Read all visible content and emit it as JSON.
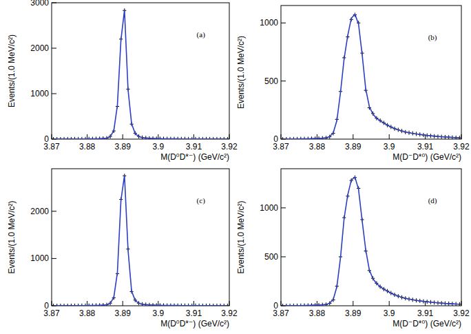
{
  "chart_data": [
    {
      "type": "scatter",
      "title": "(a)",
      "x_label": "M(D⁰D*⁻) (GeV/c²)",
      "y_label": "Events/(1.0 MeV/c²)",
      "xlim": [
        3.87,
        3.92
      ],
      "xticks": [
        3.87,
        3.88,
        3.89,
        3.9,
        3.91,
        3.92
      ],
      "ylim": [
        0,
        3000
      ],
      "yticks": [
        0,
        1000,
        2000,
        3000
      ],
      "grid": false,
      "x": [
        3.8705,
        3.8715,
        3.8725,
        3.8735,
        3.8745,
        3.8755,
        3.8765,
        3.8775,
        3.8785,
        3.8795,
        3.8805,
        3.8815,
        3.8825,
        3.8835,
        3.8845,
        3.8855,
        3.8865,
        3.8875,
        3.8885,
        3.8895,
        3.8905,
        3.8915,
        3.8925,
        3.8935,
        3.8945,
        3.8955,
        3.8965,
        3.8975,
        3.8985,
        3.8995,
        3.9005,
        3.9015,
        3.9025,
        3.9035,
        3.9045,
        3.9055,
        3.9065,
        3.9075,
        3.9085,
        3.9095,
        3.9105,
        3.9115,
        3.9125,
        3.9135,
        3.9145,
        3.9155,
        3.9165,
        3.9175,
        3.9185,
        3.9195
      ],
      "series": [
        {
          "type": "scatter",
          "color": "#000000",
          "marker": "cross",
          "values": [
            0,
            0,
            0,
            0,
            1,
            1,
            2,
            2,
            3,
            4,
            5,
            6,
            8,
            10,
            14,
            20,
            60,
            180,
            720,
            2200,
            2830,
            1100,
            330,
            130,
            60,
            35,
            25,
            18,
            14,
            11,
            9,
            8,
            7,
            6,
            5,
            5,
            4,
            4,
            3,
            3,
            3,
            2,
            2,
            2,
            2,
            1,
            1,
            1,
            1,
            1
          ]
        },
        {
          "type": "line",
          "color": "#2b3fc4",
          "line_style": "solid",
          "values": [
            0,
            0,
            0,
            1,
            1,
            1,
            2,
            2,
            3,
            4,
            5,
            6,
            8,
            10,
            14,
            22,
            55,
            190,
            740,
            2180,
            2840,
            1090,
            340,
            125,
            58,
            34,
            24,
            18,
            14,
            11,
            9,
            8,
            7,
            6,
            5,
            5,
            4,
            4,
            3,
            3,
            3,
            2,
            2,
            2,
            2,
            1,
            1,
            1,
            1,
            1
          ]
        }
      ]
    },
    {
      "type": "scatter",
      "title": "(b)",
      "x_label": "M(D⁻D*⁰) (GeV/c²)",
      "y_label": "Events/(1.0 MeV/c²)",
      "xlim": [
        3.87,
        3.92
      ],
      "xticks": [
        3.87,
        3.88,
        3.89,
        3.9,
        3.91,
        3.92
      ],
      "ylim": [
        0,
        1150
      ],
      "yticks": [
        0,
        500,
        1000
      ],
      "grid": false,
      "x": [
        3.8705,
        3.8715,
        3.8725,
        3.8735,
        3.8745,
        3.8755,
        3.8765,
        3.8775,
        3.8785,
        3.8795,
        3.8805,
        3.8815,
        3.8825,
        3.8835,
        3.8845,
        3.8855,
        3.8865,
        3.8875,
        3.8885,
        3.8895,
        3.8905,
        3.8915,
        3.8925,
        3.8935,
        3.8945,
        3.8955,
        3.8965,
        3.8975,
        3.8985,
        3.8995,
        3.9005,
        3.9015,
        3.9025,
        3.9035,
        3.9045,
        3.9055,
        3.9065,
        3.9075,
        3.9085,
        3.9095,
        3.9105,
        3.9115,
        3.9125,
        3.9135,
        3.9145,
        3.9155,
        3.9165,
        3.9175,
        3.9185,
        3.9195
      ],
      "series": [
        {
          "type": "scatter",
          "color": "#000000",
          "marker": "cross",
          "values": [
            0,
            0,
            0,
            1,
            1,
            2,
            2,
            3,
            4,
            5,
            6,
            8,
            10,
            20,
            50,
            170,
            410,
            700,
            880,
            1030,
            1070,
            1000,
            740,
            420,
            270,
            220,
            180,
            160,
            140,
            120,
            105,
            90,
            80,
            70,
            60,
            55,
            50,
            45,
            40,
            35,
            32,
            28,
            25,
            22,
            20,
            18,
            16,
            14,
            12,
            11
          ]
        },
        {
          "type": "line",
          "color": "#2b3fc4",
          "line_style": "solid",
          "values": [
            0,
            0,
            1,
            1,
            1,
            2,
            2,
            3,
            4,
            5,
            6,
            8,
            11,
            22,
            55,
            160,
            400,
            690,
            890,
            1040,
            1075,
            990,
            730,
            430,
            280,
            215,
            180,
            158,
            138,
            120,
            104,
            91,
            80,
            70,
            62,
            55,
            49,
            44,
            40,
            36,
            32,
            29,
            26,
            23,
            21,
            19,
            17,
            15,
            13,
            12
          ]
        }
      ]
    },
    {
      "type": "scatter",
      "title": "(c)",
      "x_label": "M(D⁰D*⁻) (GeV/c²)",
      "y_label": "Events/(1.0 MeV/c²)",
      "xlim": [
        3.87,
        3.92
      ],
      "xticks": [
        3.87,
        3.88,
        3.89,
        3.9,
        3.91,
        3.92
      ],
      "ylim": [
        0,
        2900
      ],
      "yticks": [
        0,
        1000,
        2000
      ],
      "grid": false,
      "x": [
        3.8705,
        3.8715,
        3.8725,
        3.8735,
        3.8745,
        3.8755,
        3.8765,
        3.8775,
        3.8785,
        3.8795,
        3.8805,
        3.8815,
        3.8825,
        3.8835,
        3.8845,
        3.8855,
        3.8865,
        3.8875,
        3.8885,
        3.8895,
        3.8905,
        3.8915,
        3.8925,
        3.8935,
        3.8945,
        3.8955,
        3.8965,
        3.8975,
        3.8985,
        3.8995,
        3.9005,
        3.9015,
        3.9025,
        3.9035,
        3.9045,
        3.9055,
        3.9065,
        3.9075,
        3.9085,
        3.9095,
        3.9105,
        3.9115,
        3.9125,
        3.9135,
        3.9145,
        3.9155,
        3.9165,
        3.9175,
        3.9185,
        3.9195
      ],
      "series": [
        {
          "type": "scatter",
          "color": "#000000",
          "marker": "cross",
          "values": [
            0,
            0,
            0,
            0,
            1,
            1,
            2,
            2,
            3,
            4,
            5,
            6,
            8,
            10,
            14,
            20,
            55,
            170,
            680,
            2250,
            2750,
            1200,
            300,
            120,
            55,
            33,
            24,
            18,
            14,
            11,
            9,
            8,
            7,
            6,
            5,
            5,
            4,
            4,
            3,
            3,
            3,
            2,
            2,
            2,
            2,
            1,
            1,
            1,
            1,
            1
          ]
        },
        {
          "type": "line",
          "color": "#2b3fc4",
          "line_style": "solid",
          "values": [
            0,
            0,
            0,
            1,
            1,
            1,
            2,
            2,
            3,
            4,
            5,
            6,
            8,
            10,
            14,
            22,
            52,
            180,
            700,
            2230,
            2760,
            1180,
            310,
            118,
            54,
            33,
            24,
            18,
            14,
            11,
            9,
            8,
            7,
            6,
            5,
            5,
            4,
            4,
            3,
            3,
            3,
            2,
            2,
            2,
            2,
            1,
            1,
            1,
            1,
            1
          ]
        }
      ]
    },
    {
      "type": "scatter",
      "title": "(d)",
      "x_label": "M(D⁻D*⁰) (GeV/c²)",
      "y_label": "Events/(1.0 MeV/c²)",
      "xlim": [
        3.87,
        3.92
      ],
      "xticks": [
        3.87,
        3.88,
        3.89,
        3.9,
        3.91,
        3.92
      ],
      "ylim": [
        0,
        1400
      ],
      "yticks": [
        0,
        500,
        1000
      ],
      "grid": false,
      "x": [
        3.8705,
        3.8715,
        3.8725,
        3.8735,
        3.8745,
        3.8755,
        3.8765,
        3.8775,
        3.8785,
        3.8795,
        3.8805,
        3.8815,
        3.8825,
        3.8835,
        3.8845,
        3.8855,
        3.8865,
        3.8875,
        3.8885,
        3.8895,
        3.8905,
        3.8915,
        3.8925,
        3.8935,
        3.8945,
        3.8955,
        3.8965,
        3.8975,
        3.8985,
        3.8995,
        3.9005,
        3.9015,
        3.9025,
        3.9035,
        3.9045,
        3.9055,
        3.9065,
        3.9075,
        3.9085,
        3.9095,
        3.9105,
        3.9115,
        3.9125,
        3.9135,
        3.9145,
        3.9155,
        3.9165,
        3.9175,
        3.9185,
        3.9195
      ],
      "series": [
        {
          "type": "scatter",
          "color": "#000000",
          "marker": "cross",
          "values": [
            0,
            0,
            0,
            1,
            1,
            2,
            3,
            4,
            5,
            6,
            7,
            10,
            12,
            25,
            60,
            200,
            500,
            900,
            1120,
            1280,
            1310,
            1200,
            880,
            560,
            360,
            280,
            230,
            195,
            170,
            150,
            130,
            112,
            98,
            86,
            76,
            68,
            61,
            55,
            50,
            45,
            41,
            37,
            33,
            30,
            27,
            24,
            22,
            20,
            18,
            16
          ]
        },
        {
          "type": "line",
          "color": "#2b3fc4",
          "line_style": "solid",
          "values": [
            0,
            0,
            1,
            1,
            1,
            2,
            3,
            4,
            5,
            6,
            7,
            10,
            13,
            27,
            65,
            195,
            490,
            890,
            1130,
            1285,
            1315,
            1190,
            870,
            570,
            365,
            275,
            228,
            195,
            170,
            149,
            129,
            113,
            98,
            86,
            76,
            68,
            61,
            55,
            50,
            45,
            41,
            37,
            33,
            30,
            27,
            24,
            22,
            20,
            18,
            16
          ]
        }
      ]
    }
  ]
}
